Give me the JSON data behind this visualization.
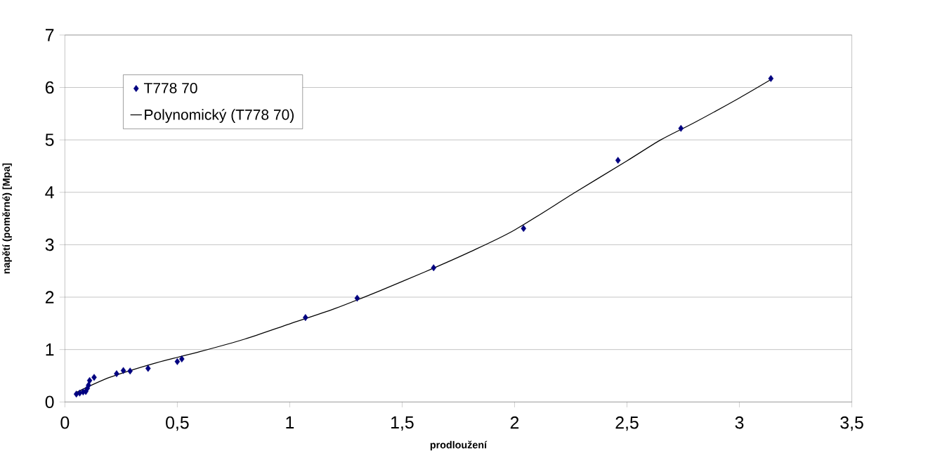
{
  "chart_data": {
    "type": "scatter",
    "xlabel": "prodloužení",
    "ylabel": "napětí (poměrné) [Mpa]",
    "xlim": [
      0,
      3.5
    ],
    "ylim": [
      0,
      7
    ],
    "xticks": [
      0,
      {
        "value": 0.5,
        "label": "0,5"
      },
      1,
      {
        "value": 1.5,
        "label": "1,5"
      },
      2,
      {
        "value": 2.5,
        "label": "2,5"
      },
      3,
      {
        "value": 3.5,
        "label": "3,5"
      }
    ],
    "yticks": [
      0,
      1,
      2,
      3,
      4,
      5,
      6,
      7
    ],
    "grid": "y",
    "legend": "top left",
    "marker": "diamond",
    "series": [
      {
        "name": "T778 70",
        "color": "#000080",
        "x": [
          0.051,
          0.066,
          0.081,
          0.093,
          0.1,
          0.105,
          0.11,
          0.13,
          0.23,
          0.26,
          0.29,
          0.37,
          0.5,
          0.52,
          1.07,
          1.3,
          1.64,
          2.04,
          2.46,
          2.74,
          3.14
        ],
        "values": [
          0.15,
          0.17,
          0.19,
          0.2,
          0.26,
          0.32,
          0.41,
          0.47,
          0.54,
          0.6,
          0.59,
          0.64,
          0.77,
          0.82,
          1.61,
          1.98,
          2.56,
          3.31,
          4.61,
          5.22,
          6.17
        ]
      },
      {
        "name": "Polynomický (T778 70)",
        "type": "line",
        "color": "#000000",
        "line_style": "solid",
        "marker": "none",
        "x": [
          0.05,
          0.2,
          0.4,
          0.6,
          0.8,
          1.0,
          1.2,
          1.4,
          1.6,
          1.8,
          2.0,
          2.27,
          2.5,
          2.65,
          2.8,
          3.0,
          3.14
        ],
        "values": [
          0.18,
          0.47,
          0.74,
          0.96,
          1.2,
          1.49,
          1.78,
          2.12,
          2.48,
          2.86,
          3.28,
          4.0,
          4.6,
          5.0,
          5.33,
          5.8,
          6.15
        ]
      }
    ]
  }
}
